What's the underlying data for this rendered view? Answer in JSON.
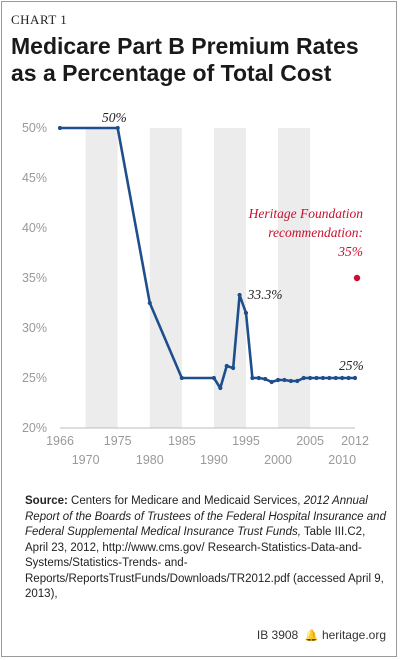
{
  "chart_label": "CHART 1",
  "title_line1": "Medicare Part B Premium Rates",
  "title_line2": "as a Percentage of Total Cost",
  "chart_data": {
    "type": "line",
    "title": "Medicare Part B Premium Rates as a Percentage of Total Cost",
    "xlabel": "",
    "ylabel": "",
    "xlim": [
      1966,
      2012
    ],
    "ylim": [
      20,
      50
    ],
    "y_ticks": [
      20,
      25,
      30,
      35,
      40,
      45,
      50
    ],
    "y_tick_suffix": "%",
    "x_ticks_upper": [
      1966,
      1975,
      1985,
      1995,
      2005,
      2012
    ],
    "x_ticks_lower": [
      1970,
      1980,
      1990,
      2000,
      2010
    ],
    "grid": "alternating vertical bands",
    "series": [
      {
        "color": "#1f4e8c",
        "points": [
          [
            1966,
            50
          ],
          [
            1975,
            50
          ],
          [
            1980,
            32.5
          ],
          [
            1985,
            25
          ],
          [
            1990,
            25
          ],
          [
            1991,
            24
          ],
          [
            1992,
            26.2
          ],
          [
            1993,
            26
          ],
          [
            1994,
            33.3
          ],
          [
            1995,
            31.5
          ],
          [
            1996,
            25
          ],
          [
            1997,
            25
          ],
          [
            1998,
            24.9
          ],
          [
            1999,
            24.6
          ],
          [
            2000,
            24.8
          ],
          [
            2001,
            24.8
          ],
          [
            2002,
            24.7
          ],
          [
            2003,
            24.7
          ],
          [
            2004,
            25
          ],
          [
            2005,
            25
          ],
          [
            2006,
            25
          ],
          [
            2007,
            25
          ],
          [
            2008,
            25
          ],
          [
            2009,
            25
          ],
          [
            2010,
            25
          ],
          [
            2011,
            25
          ],
          [
            2012,
            25
          ]
        ]
      }
    ],
    "annotations": [
      {
        "text": "50%",
        "x": 1966,
        "y": 50
      },
      {
        "text": "33.3%",
        "x": 1994,
        "y": 33.3
      },
      {
        "text": "25%",
        "x": 2012,
        "y": 25
      }
    ],
    "reference_point": {
      "label_line1": "Heritage Foundation",
      "label_line2": "recommendation:",
      "label_line3": "35%",
      "x": 2012,
      "y": 35,
      "color": "#c8102e"
    }
  },
  "source": {
    "label": "Source:",
    "segments": [
      {
        "text": " Centers for Medicare and Medicaid Services, ",
        "italic": false
      },
      {
        "text": "2012 Annual Report of the Boards of Trustees of the Federal Hospital Insurance and Federal Supplemental Medical Insurance Trust Funds,",
        "italic": true
      },
      {
        "text": " Table III.C2, April 23, 2012, http://www.cms.gov/ Research-Statistics-Data-and-Systems/Statistics-Trends- and-Reports/ReportsTrustFunds/Downloads/TR2012.pdf (accessed April 9, 2013),",
        "italic": false
      }
    ]
  },
  "footer": {
    "ib": "IB 3908",
    "bell_icon": "bell-icon",
    "site": "heritage.org"
  }
}
